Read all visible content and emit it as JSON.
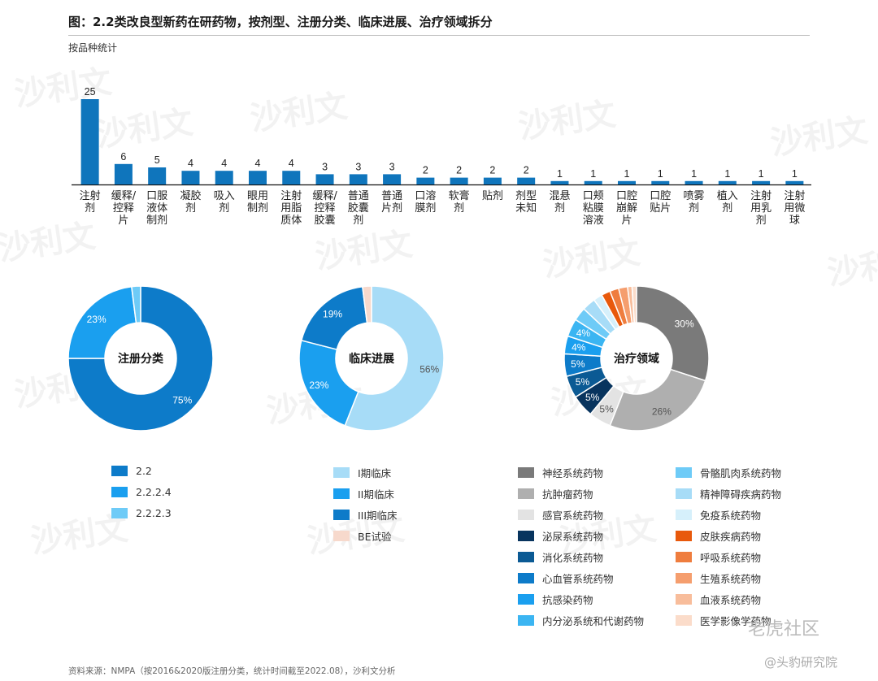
{
  "title": "图：2.2类改良型新药在研药物，按剂型、注册分类、临床进展、治疗领域拆分",
  "subtitle": "按品种统计",
  "source": "资料来源：NMPA（按2016&2020版注册分类，统计时间截至2022.08），沙利文分析",
  "watermark": {
    "brand": "沙利文",
    "corner": "老虎社区",
    "handle": "@头豹研究院"
  },
  "chart_data": [
    {
      "type": "bar",
      "categories": [
        "注射剂",
        "缓释/控释片",
        "口服液体制剂",
        "凝胶剂",
        "吸入剂",
        "眼用制剂",
        "注射用脂质体",
        "缓释/控释胶囊",
        "普通胶囊剂",
        "普通片剂",
        "口溶膜剂",
        "软膏剂",
        "贴剂",
        "剂型未知",
        "混悬剂",
        "口颊粘膜溶液",
        "口腔崩解片",
        "口腔贴片",
        "喷雾剂",
        "植入剂",
        "注射用乳剂",
        "注射用微球"
      ],
      "values": [
        25,
        6,
        5,
        4,
        4,
        4,
        4,
        3,
        3,
        3,
        2,
        2,
        2,
        2,
        1,
        1,
        1,
        1,
        1,
        1,
        1,
        1
      ],
      "color": "#0f75bc",
      "ylim": [
        0,
        25
      ]
    },
    {
      "type": "pie",
      "center_label": "注册分类",
      "slices": [
        {
          "name": "2.2",
          "value": 75,
          "label": "75%",
          "color": "#0d7bc9"
        },
        {
          "name": "2.2.2.4",
          "value": 23,
          "label": "23%",
          "color": "#1a9fef"
        },
        {
          "name": "2.2.2.3",
          "value": 2,
          "label": "",
          "color": "#6ecbf7"
        }
      ]
    },
    {
      "type": "pie",
      "center_label": "临床进展",
      "slices": [
        {
          "name": "I期临床",
          "value": 56,
          "label": "56%",
          "color": "#a7dcf7"
        },
        {
          "name": "II期临床",
          "value": 23,
          "label": "23%",
          "color": "#1a9fef"
        },
        {
          "name": "III期临床",
          "value": 19,
          "label": "19%",
          "color": "#0d7bc9"
        },
        {
          "name": "BE试验",
          "value": 2,
          "label": "",
          "color": "#f7d9cc"
        }
      ]
    },
    {
      "type": "pie",
      "center_label": "治疗领域",
      "slices": [
        {
          "name": "神经系统药物",
          "value": 30,
          "label": "30%",
          "color": "#7a7a7a"
        },
        {
          "name": "抗肿瘤药物",
          "value": 26,
          "label": "26%",
          "color": "#afafaf"
        },
        {
          "name": "感官系统药物",
          "value": 5,
          "label": "5%",
          "color": "#e3e3e3"
        },
        {
          "name": "泌尿系统药物",
          "value": 5,
          "label": "5%",
          "color": "#08345e"
        },
        {
          "name": "消化系统药物",
          "value": 5,
          "label": "5%",
          "color": "#0b5a94"
        },
        {
          "name": "心血管系统药物",
          "value": 5,
          "label": "5%",
          "color": "#0d7bc9"
        },
        {
          "name": "抗感染药物",
          "value": 4,
          "label": "4%",
          "color": "#1a9fef"
        },
        {
          "name": "内分泌系统和代谢药物",
          "value": 4,
          "label": "4%",
          "color": "#3bb5f2"
        },
        {
          "name": "骨骼肌肉系统药物",
          "value": 3,
          "label": "",
          "color": "#6ecbf7"
        },
        {
          "name": "精神障碍疾病药物",
          "value": 3,
          "label": "",
          "color": "#a7dcf7"
        },
        {
          "name": "免疫系统药物",
          "value": 2,
          "label": "",
          "color": "#d6f0fb"
        },
        {
          "name": "皮肤疾病药物",
          "value": 2,
          "label": "",
          "color": "#e8590c"
        },
        {
          "name": "呼吸系统药物",
          "value": 2,
          "label": "",
          "color": "#ef7d3e"
        },
        {
          "name": "生殖系统药物",
          "value": 2,
          "label": "",
          "color": "#f59e6e"
        },
        {
          "name": "血液系统药物",
          "value": 1,
          "label": "",
          "color": "#f8bd9b"
        },
        {
          "name": "医学影像学药物",
          "value": 1,
          "label": "",
          "color": "#fbdcca"
        }
      ]
    }
  ]
}
